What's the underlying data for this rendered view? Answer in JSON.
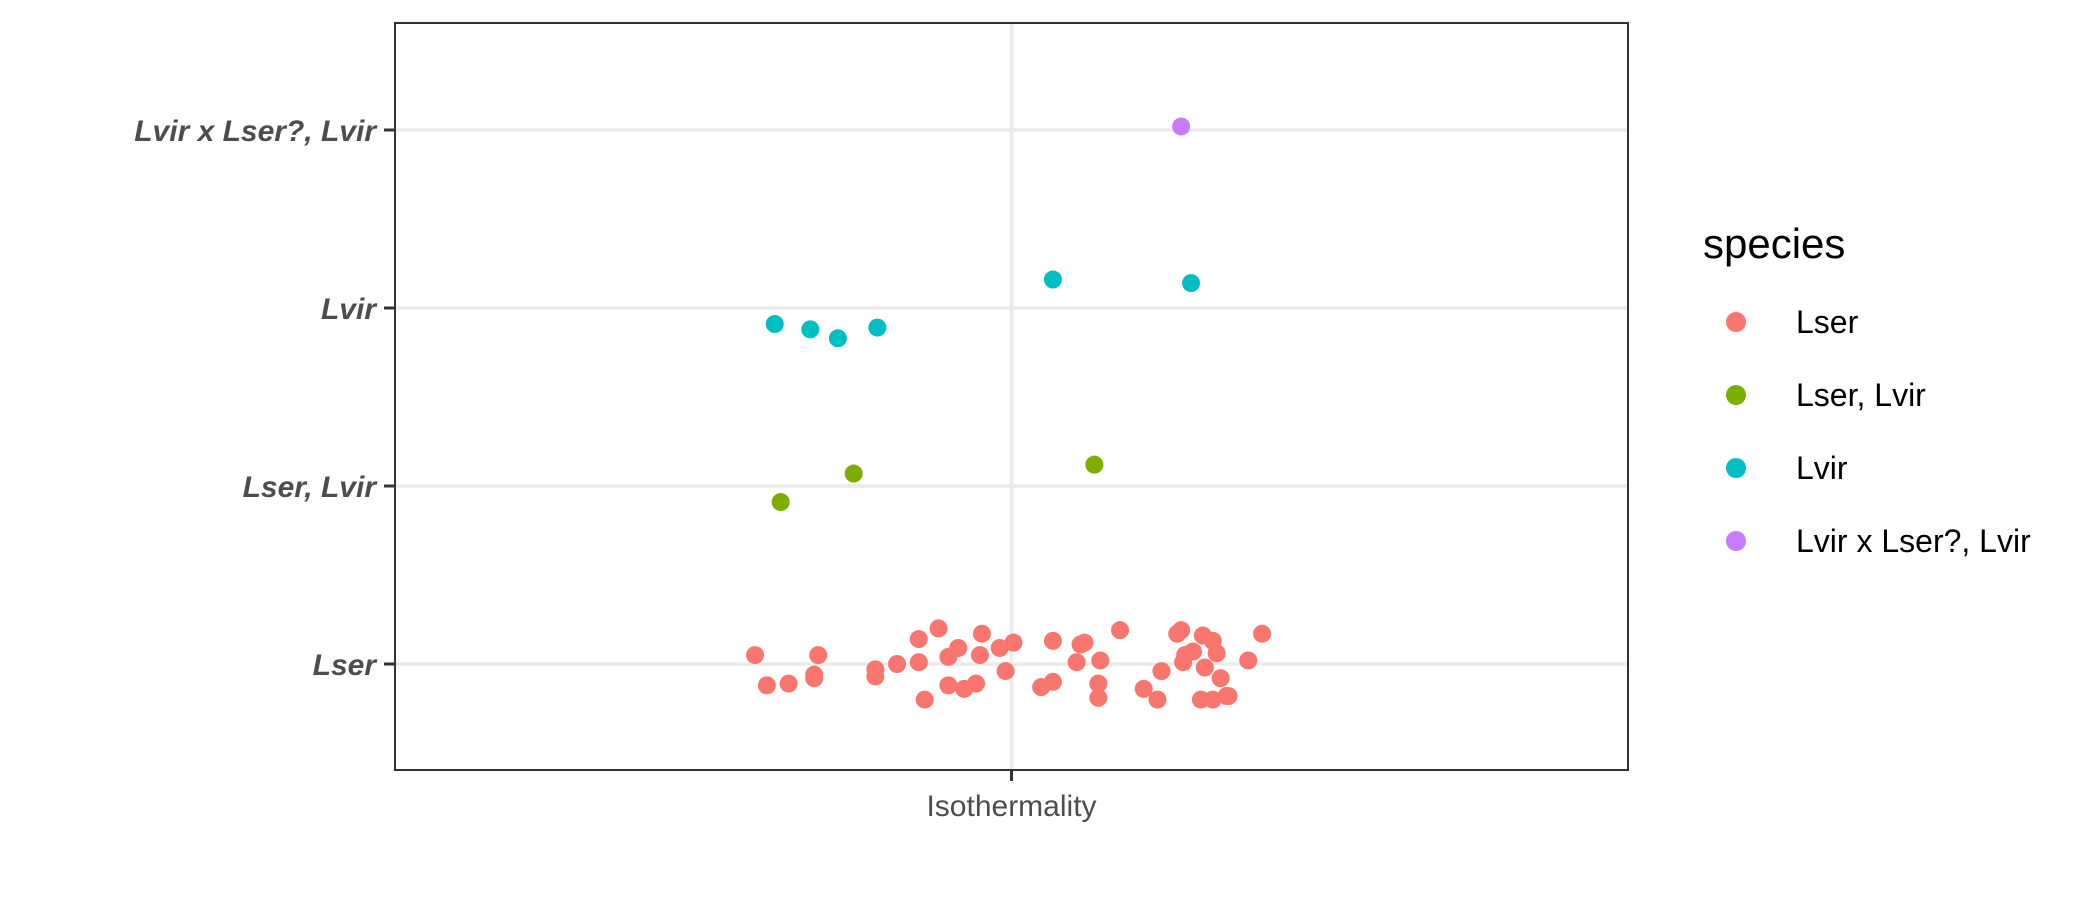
{
  "chart_data": {
    "type": "scatter",
    "x_axis": {
      "tick_labels": [
        "Isothermality"
      ]
    },
    "y_axis": {
      "categories": [
        "Lser",
        "Lser, Lvir",
        "Lvir",
        "Lvir x Lser?, Lvir"
      ]
    },
    "grid": true,
    "legend": {
      "title": "species",
      "placement": "right",
      "entries": [
        {
          "label": "Lser",
          "color": "#F8766D"
        },
        {
          "label": "Lser, Lvir",
          "color": "#7CAE00"
        },
        {
          "label": "Lvir",
          "color": "#00BFC4"
        },
        {
          "label": "Lvir x Lser?, Lvir",
          "color": "#C77CFF"
        }
      ]
    },
    "points_note": "jittered points; jx = horizontal jitter relative to the Isothermality tick (range -1..1), jy = vertical jitter around the species category (range -0.5..0.5)",
    "series": [
      {
        "name": "Lser",
        "color": "#F8766D",
        "points": [
          {
            "jx": -0.65,
            "jy": 0.05
          },
          {
            "jx": -0.62,
            "jy": -0.12
          },
          {
            "jx": -0.565,
            "jy": -0.11
          },
          {
            "jx": -0.5,
            "jy": -0.08
          },
          {
            "jx": -0.5,
            "jy": -0.06
          },
          {
            "jx": -0.49,
            "jy": 0.05
          },
          {
            "jx": -0.345,
            "jy": -0.07
          },
          {
            "jx": -0.345,
            "jy": -0.03
          },
          {
            "jx": -0.29,
            "jy": 0.0
          },
          {
            "jx": -0.235,
            "jy": 0.14
          },
          {
            "jx": -0.235,
            "jy": 0.01
          },
          {
            "jx": -0.22,
            "jy": -0.2
          },
          {
            "jx": -0.185,
            "jy": 0.2
          },
          {
            "jx": -0.16,
            "jy": 0.04
          },
          {
            "jx": -0.16,
            "jy": -0.12
          },
          {
            "jx": -0.135,
            "jy": 0.09
          },
          {
            "jx": -0.12,
            "jy": -0.14
          },
          {
            "jx": -0.09,
            "jy": -0.11
          },
          {
            "jx": -0.08,
            "jy": 0.05
          },
          {
            "jx": -0.075,
            "jy": 0.17
          },
          {
            "jx": -0.03,
            "jy": 0.09
          },
          {
            "jx": -0.015,
            "jy": -0.04
          },
          {
            "jx": 0.005,
            "jy": 0.12
          },
          {
            "jx": 0.075,
            "jy": -0.13
          },
          {
            "jx": 0.105,
            "jy": -0.1
          },
          {
            "jx": 0.105,
            "jy": 0.13
          },
          {
            "jx": 0.165,
            "jy": 0.01
          },
          {
            "jx": 0.175,
            "jy": 0.11
          },
          {
            "jx": 0.185,
            "jy": 0.12
          },
          {
            "jx": 0.22,
            "jy": -0.11
          },
          {
            "jx": 0.22,
            "jy": -0.19
          },
          {
            "jx": 0.225,
            "jy": 0.02
          },
          {
            "jx": 0.275,
            "jy": 0.19
          },
          {
            "jx": 0.335,
            "jy": -0.14
          },
          {
            "jx": 0.37,
            "jy": -0.2
          },
          {
            "jx": 0.38,
            "jy": -0.04
          },
          {
            "jx": 0.42,
            "jy": 0.17
          },
          {
            "jx": 0.43,
            "jy": 0.19
          },
          {
            "jx": 0.435,
            "jy": 0.01
          },
          {
            "jx": 0.44,
            "jy": 0.05
          },
          {
            "jx": 0.46,
            "jy": 0.07
          },
          {
            "jx": 0.48,
            "jy": -0.2
          },
          {
            "jx": 0.485,
            "jy": 0.16
          },
          {
            "jx": 0.49,
            "jy": -0.02
          },
          {
            "jx": 0.51,
            "jy": 0.13
          },
          {
            "jx": 0.51,
            "jy": -0.2
          },
          {
            "jx": 0.52,
            "jy": 0.06
          },
          {
            "jx": 0.53,
            "jy": -0.08
          },
          {
            "jx": 0.545,
            "jy": -0.18
          },
          {
            "jx": 0.55,
            "jy": -0.18
          },
          {
            "jx": 0.6,
            "jy": 0.02
          },
          {
            "jx": 0.635,
            "jy": 0.17
          }
        ]
      },
      {
        "name": "Lser, Lvir",
        "color": "#7CAE00",
        "points": [
          {
            "jx": -0.585,
            "jy": -0.09
          },
          {
            "jx": -0.4,
            "jy": 0.07
          },
          {
            "jx": 0.21,
            "jy": 0.12
          }
        ]
      },
      {
        "name": "Lvir",
        "color": "#00BFC4",
        "points": [
          {
            "jx": -0.6,
            "jy": -0.09
          },
          {
            "jx": -0.51,
            "jy": -0.12
          },
          {
            "jx": -0.44,
            "jy": -0.17
          },
          {
            "jx": -0.34,
            "jy": -0.11
          },
          {
            "jx": 0.105,
            "jy": 0.16
          },
          {
            "jx": 0.455,
            "jy": 0.14
          }
        ]
      },
      {
        "name": "Lvir x Lser?, Lvir",
        "color": "#C77CFF",
        "points": [
          {
            "jx": 0.43,
            "jy": 0.02
          }
        ]
      }
    ]
  }
}
